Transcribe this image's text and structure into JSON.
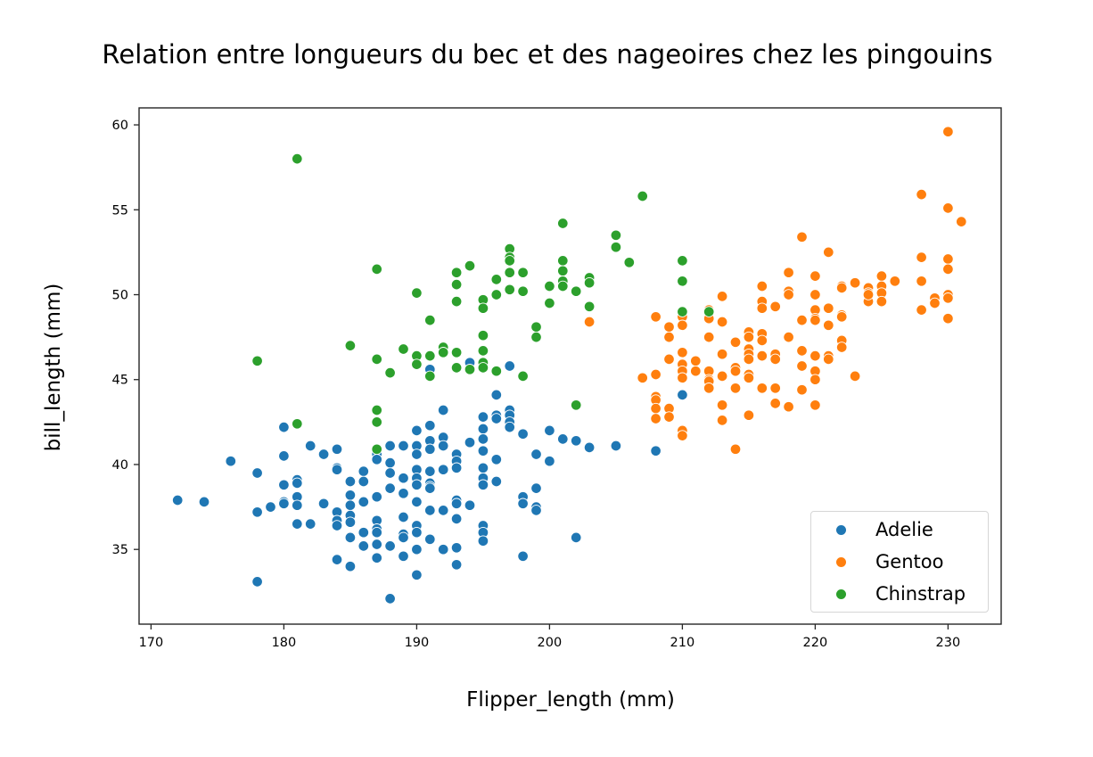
{
  "chart_data": {
    "type": "scatter",
    "title": "Relation entre longueurs du bec et des nageoires chez les pingouins",
    "xlabel": "Flipper_length (mm)",
    "ylabel": "bill_length (mm)",
    "xlim": [
      169.1,
      234.0
    ],
    "ylim": [
      30.6,
      61.0
    ],
    "xticks": [
      170,
      180,
      190,
      200,
      210,
      220,
      230
    ],
    "yticks": [
      35,
      40,
      45,
      50,
      55,
      60
    ],
    "grid": false,
    "legend_position": "lower right",
    "series": [
      {
        "name": "Adelie",
        "color": "#1f77b4",
        "points": [
          [
            172,
            37.9
          ],
          [
            174,
            37.8
          ],
          [
            176,
            40.2
          ],
          [
            178,
            39.5
          ],
          [
            178,
            37.2
          ],
          [
            178,
            33.1
          ],
          [
            179,
            37.5
          ],
          [
            180,
            42.2
          ],
          [
            180,
            40.5
          ],
          [
            180,
            38.8
          ],
          [
            180,
            37.8
          ],
          [
            180,
            37.7
          ],
          [
            181,
            39.1
          ],
          [
            181,
            38.9
          ],
          [
            181,
            38.1
          ],
          [
            181,
            37.6
          ],
          [
            181,
            36.5
          ],
          [
            182,
            41.1
          ],
          [
            182,
            36.5
          ],
          [
            183,
            40.6
          ],
          [
            183,
            37.7
          ],
          [
            184,
            40.9
          ],
          [
            184,
            39.8
          ],
          [
            184,
            39.7
          ],
          [
            184,
            37.2
          ],
          [
            184,
            36.7
          ],
          [
            184,
            36.4
          ],
          [
            184,
            34.4
          ],
          [
            185,
            39.0
          ],
          [
            185,
            38.2
          ],
          [
            185,
            37.6
          ],
          [
            185,
            37.0
          ],
          [
            185,
            36.6
          ],
          [
            185,
            35.7
          ],
          [
            185,
            34.0
          ],
          [
            186,
            39.6
          ],
          [
            186,
            39.0
          ],
          [
            186,
            37.8
          ],
          [
            186,
            36.0
          ],
          [
            186,
            35.2
          ],
          [
            187,
            40.6
          ],
          [
            187,
            40.3
          ],
          [
            187,
            38.1
          ],
          [
            187,
            36.7
          ],
          [
            187,
            36.2
          ],
          [
            187,
            36.0
          ],
          [
            187,
            35.3
          ],
          [
            187,
            34.5
          ],
          [
            188,
            41.1
          ],
          [
            188,
            40.1
          ],
          [
            188,
            39.5
          ],
          [
            188,
            38.6
          ],
          [
            188,
            35.2
          ],
          [
            188,
            32.1
          ],
          [
            189,
            41.1
          ],
          [
            189,
            39.2
          ],
          [
            189,
            38.3
          ],
          [
            189,
            36.9
          ],
          [
            189,
            35.9
          ],
          [
            189,
            35.7
          ],
          [
            189,
            34.6
          ],
          [
            190,
            42.0
          ],
          [
            190,
            41.1
          ],
          [
            190,
            40.6
          ],
          [
            190,
            39.7
          ],
          [
            190,
            39.2
          ],
          [
            190,
            38.8
          ],
          [
            190,
            37.8
          ],
          [
            190,
            36.4
          ],
          [
            190,
            36.0
          ],
          [
            190,
            35.0
          ],
          [
            190,
            33.5
          ],
          [
            191,
            42.3
          ],
          [
            191,
            41.4
          ],
          [
            191,
            40.9
          ],
          [
            191,
            39.6
          ],
          [
            191,
            38.9
          ],
          [
            191,
            38.7
          ],
          [
            191,
            38.6
          ],
          [
            191,
            37.3
          ],
          [
            191,
            35.6
          ],
          [
            191,
            45.6
          ],
          [
            192,
            43.2
          ],
          [
            192,
            41.6
          ],
          [
            192,
            41.1
          ],
          [
            192,
            39.7
          ],
          [
            192,
            37.3
          ],
          [
            192,
            35.0
          ],
          [
            193,
            40.6
          ],
          [
            193,
            40.2
          ],
          [
            193,
            39.8
          ],
          [
            193,
            37.9
          ],
          [
            193,
            37.7
          ],
          [
            193,
            36.8
          ],
          [
            193,
            35.1
          ],
          [
            193,
            34.1
          ],
          [
            194,
            46.0
          ],
          [
            194,
            41.3
          ],
          [
            194,
            37.6
          ],
          [
            195,
            42.8
          ],
          [
            195,
            42.1
          ],
          [
            195,
            41.5
          ],
          [
            195,
            40.8
          ],
          [
            195,
            39.8
          ],
          [
            195,
            39.2
          ],
          [
            195,
            38.8
          ],
          [
            195,
            36.4
          ],
          [
            195,
            36.0
          ],
          [
            195,
            35.5
          ],
          [
            196,
            44.1
          ],
          [
            196,
            42.9
          ],
          [
            196,
            42.7
          ],
          [
            196,
            40.3
          ],
          [
            196,
            39.0
          ],
          [
            197,
            45.8
          ],
          [
            197,
            43.2
          ],
          [
            197,
            42.9
          ],
          [
            197,
            42.5
          ],
          [
            197,
            42.2
          ],
          [
            198,
            41.8
          ],
          [
            198,
            38.1
          ],
          [
            198,
            37.7
          ],
          [
            198,
            34.6
          ],
          [
            199,
            40.6
          ],
          [
            199,
            38.6
          ],
          [
            199,
            37.5
          ],
          [
            199,
            37.3
          ],
          [
            200,
            42.0
          ],
          [
            200,
            40.2
          ],
          [
            201,
            41.5
          ],
          [
            202,
            41.4
          ],
          [
            202,
            35.7
          ],
          [
            203,
            41.0
          ],
          [
            205,
            41.1
          ],
          [
            208,
            40.8
          ],
          [
            210,
            44.1
          ]
        ]
      },
      {
        "name": "Gentoo",
        "color": "#ff7f0e",
        "points": [
          [
            203,
            48.4
          ],
          [
            207,
            45.1
          ],
          [
            208,
            48.7
          ],
          [
            208,
            45.3
          ],
          [
            208,
            44.0
          ],
          [
            208,
            43.8
          ],
          [
            208,
            43.3
          ],
          [
            208,
            42.7
          ],
          [
            209,
            48.1
          ],
          [
            209,
            47.5
          ],
          [
            209,
            46.2
          ],
          [
            209,
            43.3
          ],
          [
            209,
            42.8
          ],
          [
            210,
            48.7
          ],
          [
            210,
            48.2
          ],
          [
            210,
            46.6
          ],
          [
            210,
            45.9
          ],
          [
            210,
            45.5
          ],
          [
            210,
            45.1
          ],
          [
            210,
            42.0
          ],
          [
            210,
            41.7
          ],
          [
            211,
            46.1
          ],
          [
            211,
            45.5
          ],
          [
            212,
            49.1
          ],
          [
            212,
            48.6
          ],
          [
            212,
            47.5
          ],
          [
            212,
            45.5
          ],
          [
            212,
            45.0
          ],
          [
            212,
            44.9
          ],
          [
            212,
            44.5
          ],
          [
            213,
            49.9
          ],
          [
            213,
            48.4
          ],
          [
            213,
            46.5
          ],
          [
            213,
            45.2
          ],
          [
            213,
            43.5
          ],
          [
            213,
            42.6
          ],
          [
            214,
            47.2
          ],
          [
            214,
            45.7
          ],
          [
            214,
            45.5
          ],
          [
            214,
            44.5
          ],
          [
            214,
            40.9
          ],
          [
            215,
            47.8
          ],
          [
            215,
            47.5
          ],
          [
            215,
            46.8
          ],
          [
            215,
            46.5
          ],
          [
            215,
            46.2
          ],
          [
            215,
            45.3
          ],
          [
            215,
            45.1
          ],
          [
            215,
            42.9
          ],
          [
            216,
            50.5
          ],
          [
            216,
            49.6
          ],
          [
            216,
            49.2
          ],
          [
            216,
            47.7
          ],
          [
            216,
            47.3
          ],
          [
            216,
            46.4
          ],
          [
            216,
            44.5
          ],
          [
            217,
            49.3
          ],
          [
            217,
            46.5
          ],
          [
            217,
            46.2
          ],
          [
            217,
            44.5
          ],
          [
            217,
            43.6
          ],
          [
            218,
            51.3
          ],
          [
            218,
            50.2
          ],
          [
            218,
            50.0
          ],
          [
            218,
            47.5
          ],
          [
            218,
            43.4
          ],
          [
            219,
            53.4
          ],
          [
            219,
            48.5
          ],
          [
            219,
            46.7
          ],
          [
            219,
            45.8
          ],
          [
            219,
            44.4
          ],
          [
            220,
            51.1
          ],
          [
            220,
            50.0
          ],
          [
            220,
            49.1
          ],
          [
            220,
            48.6
          ],
          [
            220,
            48.5
          ],
          [
            220,
            46.4
          ],
          [
            220,
            45.5
          ],
          [
            220,
            45.0
          ],
          [
            220,
            43.5
          ],
          [
            221,
            52.5
          ],
          [
            221,
            49.2
          ],
          [
            221,
            48.2
          ],
          [
            221,
            46.4
          ],
          [
            221,
            46.2
          ],
          [
            222,
            50.5
          ],
          [
            222,
            50.4
          ],
          [
            222,
            48.8
          ],
          [
            222,
            48.7
          ],
          [
            222,
            47.3
          ],
          [
            222,
            46.9
          ],
          [
            223,
            50.7
          ],
          [
            223,
            45.2
          ],
          [
            224,
            50.4
          ],
          [
            224,
            50.1
          ],
          [
            224,
            49.6
          ],
          [
            224,
            50.0
          ],
          [
            225,
            51.1
          ],
          [
            225,
            50.5
          ],
          [
            225,
            50.1
          ],
          [
            225,
            49.6
          ],
          [
            226,
            50.8
          ],
          [
            228,
            55.9
          ],
          [
            228,
            52.2
          ],
          [
            228,
            50.8
          ],
          [
            228,
            49.1
          ],
          [
            229,
            49.8
          ],
          [
            229,
            49.5
          ],
          [
            230,
            59.6
          ],
          [
            230,
            55.1
          ],
          [
            230,
            52.1
          ],
          [
            230,
            51.5
          ],
          [
            230,
            50.0
          ],
          [
            230,
            49.8
          ],
          [
            230,
            48.6
          ],
          [
            231,
            54.3
          ]
        ]
      },
      {
        "name": "Chinstrap",
        "color": "#2ca02c",
        "points": [
          [
            178,
            46.1
          ],
          [
            181,
            58.0
          ],
          [
            181,
            42.4
          ],
          [
            185,
            47.0
          ],
          [
            187,
            51.5
          ],
          [
            187,
            46.2
          ],
          [
            187,
            43.2
          ],
          [
            187,
            42.5
          ],
          [
            187,
            40.9
          ],
          [
            188,
            45.4
          ],
          [
            189,
            46.8
          ],
          [
            190,
            50.1
          ],
          [
            190,
            46.4
          ],
          [
            190,
            45.9
          ],
          [
            191,
            48.5
          ],
          [
            191,
            46.4
          ],
          [
            191,
            45.2
          ],
          [
            192,
            46.9
          ],
          [
            192,
            46.6
          ],
          [
            193,
            51.3
          ],
          [
            193,
            50.6
          ],
          [
            193,
            49.6
          ],
          [
            193,
            46.6
          ],
          [
            193,
            45.7
          ],
          [
            194,
            51.7
          ],
          [
            194,
            45.6
          ],
          [
            195,
            49.7
          ],
          [
            195,
            49.2
          ],
          [
            195,
            47.6
          ],
          [
            195,
            46.7
          ],
          [
            195,
            46.0
          ],
          [
            195,
            45.7
          ],
          [
            196,
            50.9
          ],
          [
            196,
            50.0
          ],
          [
            196,
            45.5
          ],
          [
            197,
            52.7
          ],
          [
            197,
            52.2
          ],
          [
            197,
            52.0
          ],
          [
            197,
            51.3
          ],
          [
            197,
            50.3
          ],
          [
            198,
            51.3
          ],
          [
            198,
            50.2
          ],
          [
            198,
            45.2
          ],
          [
            199,
            48.1
          ],
          [
            199,
            47.5
          ],
          [
            200,
            50.5
          ],
          [
            200,
            49.5
          ],
          [
            201,
            54.2
          ],
          [
            201,
            52.0
          ],
          [
            201,
            51.4
          ],
          [
            201,
            50.8
          ],
          [
            201,
            50.5
          ],
          [
            202,
            50.2
          ],
          [
            202,
            43.5
          ],
          [
            203,
            51.0
          ],
          [
            203,
            50.7
          ],
          [
            203,
            49.3
          ],
          [
            205,
            53.5
          ],
          [
            205,
            52.8
          ],
          [
            206,
            51.9
          ],
          [
            207,
            55.8
          ],
          [
            210,
            52.0
          ],
          [
            210,
            50.8
          ],
          [
            210,
            49.0
          ],
          [
            212,
            49.0
          ]
        ]
      }
    ]
  },
  "legend": {
    "items": [
      {
        "label": "Adelie",
        "color": "#1f77b4"
      },
      {
        "label": "Gentoo",
        "color": "#ff7f0e"
      },
      {
        "label": "Chinstrap",
        "color": "#2ca02c"
      }
    ]
  }
}
